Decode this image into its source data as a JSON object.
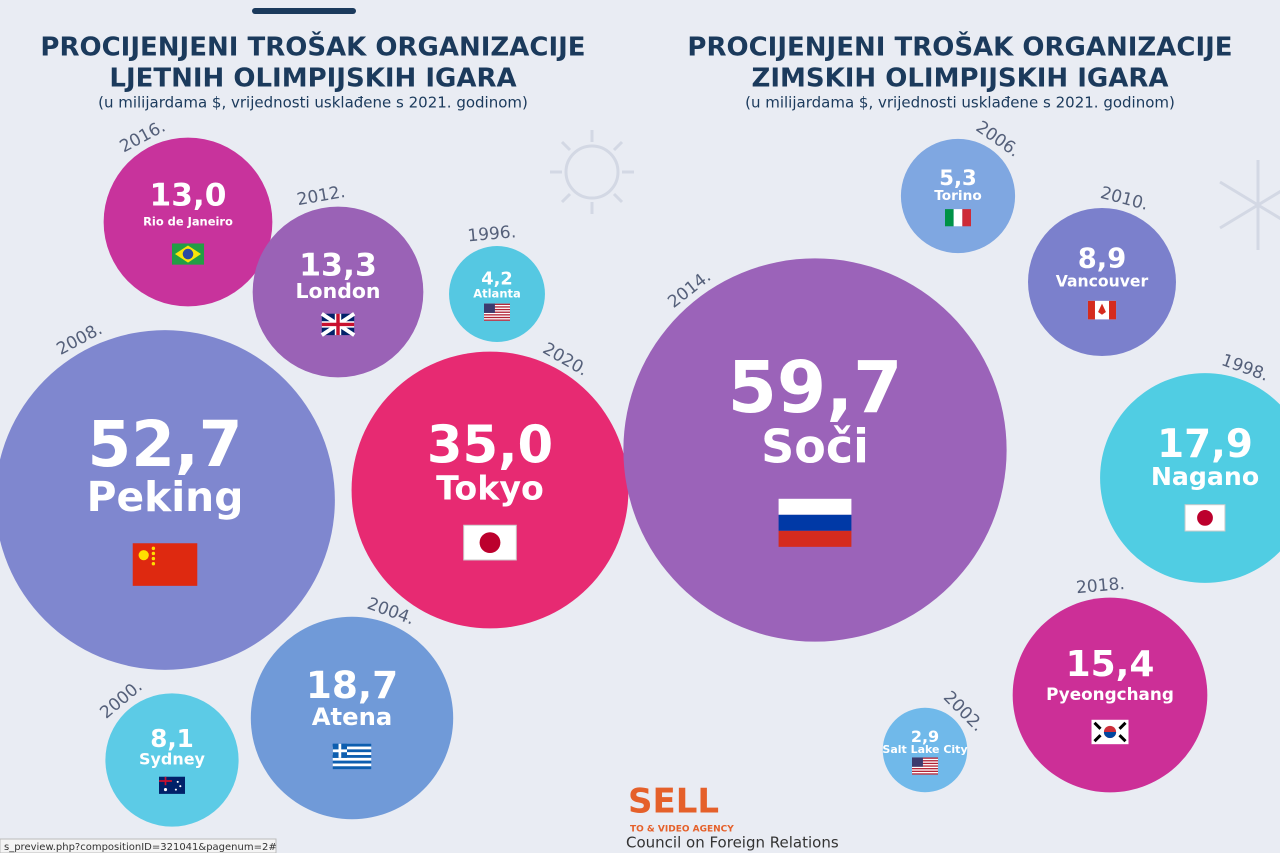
{
  "chart_data": [
    {
      "type": "bubble",
      "title": [
        "PROCIJENJENI TROŠAK ORGANIZACIJE",
        "LJETNIH OLIMPIJSKIH IGARA"
      ],
      "subtitle": "(u milijardama $, vrijednosti usklađene s 2021. godinom)",
      "categories": [
        "Rio de Janeiro",
        "London",
        "Atlanta",
        "Peking",
        "Tokyo",
        "Atena",
        "Sydney"
      ],
      "years": [
        "2016.",
        "2012.",
        "1996.",
        "2008.",
        "2020.",
        "2004.",
        "2000."
      ],
      "values": [
        13.0,
        13.3,
        4.2,
        52.7,
        35.0,
        18.7,
        8.1
      ],
      "value_labels": [
        "13,0",
        "13,3",
        "4,2",
        "52,7",
        "35,0",
        "18,7",
        "8,1"
      ],
      "colors": [
        "#c8339c",
        "#9a62b6",
        "#55c8e2",
        "#7f87cf",
        "#e72a72",
        "#709ad8",
        "#5ccbe6"
      ]
    },
    {
      "type": "bubble",
      "title": [
        "PROCIJENJENI TROŠAK ORGANIZACIJE",
        "ZIMSKIH OLIMPIJSKIH IGARA"
      ],
      "subtitle": "(u milijardama $, vrijednosti usklađene s 2021. godinom)",
      "categories": [
        "Torino",
        "Vancouver",
        "Soči",
        "Nagano",
        "Pyeongchang",
        "Salt Lake City"
      ],
      "years": [
        "2006.",
        "2010.",
        "2014.",
        "1998.",
        "2018.",
        "2002."
      ],
      "values": [
        5.3,
        8.9,
        59.7,
        17.9,
        15.4,
        2.9
      ],
      "value_labels": [
        "5,3",
        "8,9",
        "59,7",
        "17,9",
        "15,4",
        "2,9"
      ],
      "colors": [
        "#7fa7e1",
        "#7b80cc",
        "#9b63b9",
        "#50cde3",
        "#cc2f97",
        "#70b9ea"
      ]
    }
  ],
  "footer": {
    "logo": "SELL",
    "agency": "TO & VIDEO AGENCY",
    "source": "Council on Foreign Relations",
    "status_url": "s_preview.php?compositionID=321041&pagenum=2#"
  }
}
